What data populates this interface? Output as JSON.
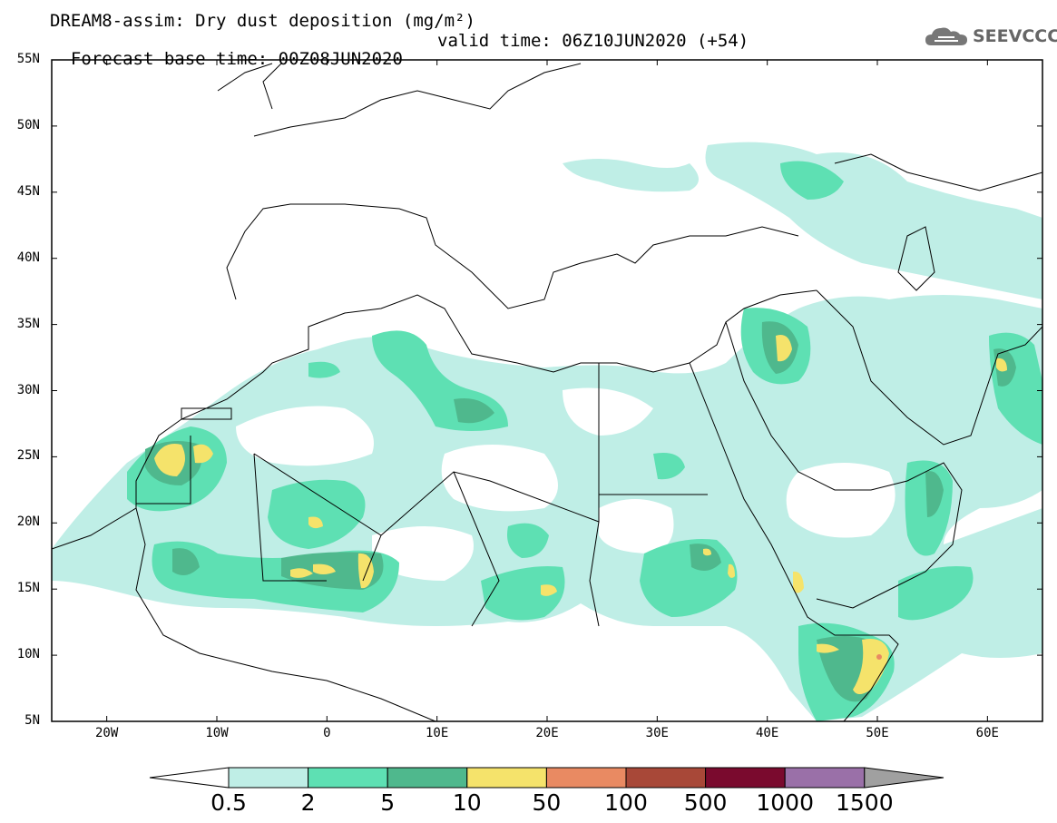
{
  "title_line1": "DREAM8-assim: Dry dust deposition (mg/m²)",
  "title_line2_base": "Forecast base time: 00Z08JUN2020",
  "title_line2_valid": "valid time: 06Z10JUN2020 (+54)",
  "logo_text": "SEEVCCC",
  "logo_icon": "cloud-icon",
  "map": {
    "lat_range": [
      5,
      55
    ],
    "lon_range": [
      -25,
      65
    ],
    "lat_labels": [
      "55N",
      "50N",
      "45N",
      "40N",
      "35N",
      "30N",
      "25N",
      "20N",
      "15N",
      "10N",
      "5N"
    ],
    "lon_labels": [
      "20W",
      "10W",
      "0",
      "10E",
      "20E",
      "30E",
      "40E",
      "50E",
      "60E"
    ]
  },
  "colorbar": {
    "labels": [
      "0.5",
      "2",
      "5",
      "10",
      "50",
      "100",
      "500",
      "1000",
      "1500"
    ],
    "colors": [
      "#bfeee6",
      "#5ee0b3",
      "#4fb88d",
      "#f5e36b",
      "#e98a62",
      "#a84838",
      "#7a0a2e",
      "#9a70a8",
      "#a0a0a0"
    ],
    "over_color": "#a0a0a0",
    "under_color": "#ffffff"
  }
}
